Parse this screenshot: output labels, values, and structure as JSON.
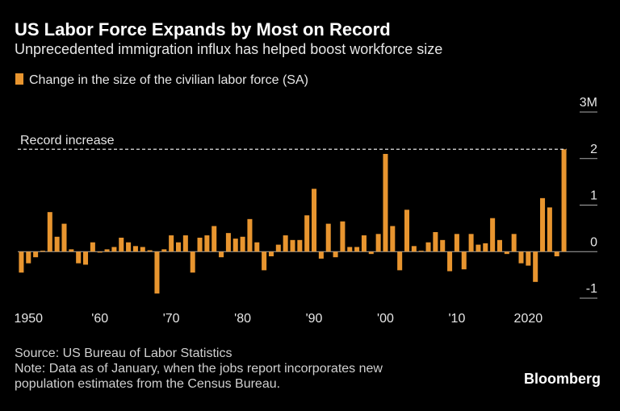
{
  "chart_data": {
    "type": "bar",
    "title": "US Labor Force Expands by Most on Record",
    "subtitle": "Unprecedented immigration influx has helped boost workforce size",
    "x": [
      1949,
      1950,
      1951,
      1952,
      1953,
      1954,
      1955,
      1956,
      1957,
      1958,
      1959,
      1960,
      1961,
      1962,
      1963,
      1964,
      1965,
      1966,
      1967,
      1968,
      1969,
      1970,
      1971,
      1972,
      1973,
      1974,
      1975,
      1976,
      1977,
      1978,
      1979,
      1980,
      1981,
      1982,
      1983,
      1984,
      1985,
      1986,
      1987,
      1988,
      1989,
      1990,
      1991,
      1992,
      1993,
      1994,
      1995,
      1996,
      1997,
      1998,
      1999,
      2000,
      2001,
      2002,
      2003,
      2004,
      2005,
      2006,
      2007,
      2008,
      2009,
      2010,
      2011,
      2012,
      2013,
      2014,
      2015,
      2016,
      2017,
      2018,
      2019,
      2020,
      2021,
      2022,
      2023,
      2024,
      2025
    ],
    "series": [
      {
        "name": "Change in the size of the civilian labor force (SA)",
        "color": "#e8952f",
        "values": [
          -0.45,
          -0.25,
          -0.12,
          0.02,
          0.85,
          0.32,
          0.6,
          0.05,
          -0.25,
          -0.28,
          0.2,
          -0.02,
          0.05,
          0.1,
          0.3,
          0.2,
          0.12,
          0.1,
          0.03,
          -0.9,
          0.05,
          0.35,
          0.2,
          0.35,
          -0.45,
          0.3,
          0.35,
          0.55,
          -0.12,
          0.4,
          0.28,
          0.32,
          0.7,
          0.2,
          -0.4,
          -0.1,
          0.15,
          0.35,
          0.25,
          0.25,
          0.78,
          1.35,
          -0.15,
          0.6,
          -0.12,
          0.65,
          0.1,
          0.1,
          0.35,
          -0.05,
          0.38,
          2.1,
          0.55,
          -0.4,
          0.9,
          0.12,
          0.02,
          0.2,
          0.42,
          0.25,
          -0.42,
          0.38,
          -0.38,
          0.38,
          0.15,
          0.18,
          0.72,
          0.25,
          -0.05,
          0.38,
          -0.25,
          -0.3,
          -0.65,
          1.15,
          0.95,
          -0.1,
          2.2
        ]
      }
    ],
    "annotation": "Record increase",
    "xlim": [
      1948.5,
      2025.5
    ],
    "xticks": [
      1950,
      {
        "value": 1960,
        "label": "'60"
      },
      {
        "value": 1970,
        "label": "'70"
      },
      {
        "value": 1980,
        "label": "'80"
      },
      {
        "value": 1990,
        "label": "'90"
      },
      {
        "value": 2000,
        "label": "'00"
      },
      {
        "value": 2010,
        "label": "'10"
      },
      2020
    ],
    "ylim": [
      -1.1,
      3
    ],
    "yticks": [
      -1,
      0,
      1,
      2,
      {
        "value": 3,
        "label": "3M"
      }
    ],
    "source": "Source: US Bureau of Labor Statistics",
    "note": "Note: Data as of January, when the jobs report incorporates new population estimates from the Census Bureau.",
    "brand": "Bloomberg"
  }
}
